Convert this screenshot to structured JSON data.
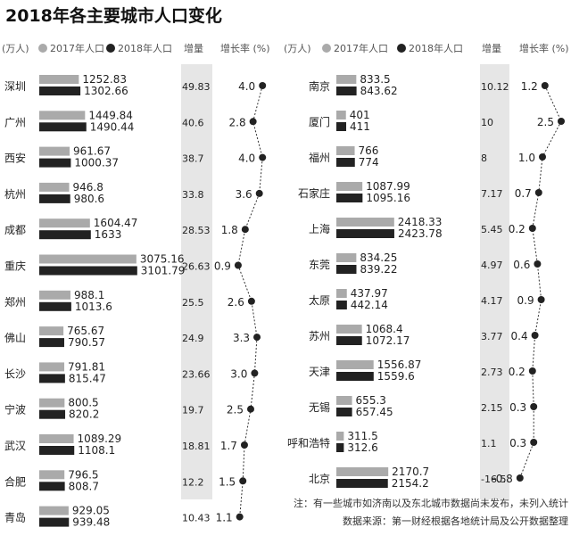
{
  "title": "2018年各主要城市人口变化",
  "header": {
    "unit": "(万人)",
    "legend_2017": "2017年人口",
    "legend_2018": "2018年人口",
    "increase": "增量",
    "growth": "增长率 (%)"
  },
  "colors": {
    "y2017": "#aaaaaa",
    "y2018": "#222222",
    "band": "#e6e6e6"
  },
  "chart_data": [
    {
      "type": "bar",
      "unit": "万人",
      "series": [
        {
          "name": "2017年人口",
          "values": [
            1252.83,
            1449.84,
            961.67,
            946.8,
            1604.47,
            3075.16,
            988.1,
            765.67,
            791.81,
            800.5,
            1089.29,
            796.5,
            929.05
          ]
        },
        {
          "name": "2018年人口",
          "values": [
            1302.66,
            1490.44,
            1000.37,
            980.6,
            1633,
            3101.79,
            1013.6,
            790.57,
            815.47,
            820.2,
            1108.1,
            808.7,
            939.48
          ]
        }
      ],
      "categories": [
        "深圳",
        "广州",
        "西安",
        "杭州",
        "成都",
        "重庆",
        "郑州",
        "佛山",
        "长沙",
        "宁波",
        "武汉",
        "合肥",
        "青岛"
      ],
      "increase": [
        "49.83",
        "40.6",
        "38.7",
        "33.8",
        "28.53",
        "26.63",
        "25.5",
        "24.9",
        "23.66",
        "19.7",
        "18.81",
        "12.2",
        "10.43"
      ],
      "growth": [
        4.0,
        2.8,
        4.0,
        3.6,
        1.8,
        0.9,
        2.6,
        3.3,
        3.0,
        2.5,
        1.7,
        1.5,
        1.1
      ],
      "growth_labels": [
        "4.0",
        "2.8",
        "4.0",
        "3.6",
        "1.8",
        "0.9",
        "2.6",
        "3.3",
        "3.0",
        "2.5",
        "1.7",
        "1.5",
        "1.1"
      ]
    },
    {
      "type": "bar",
      "unit": "万人",
      "series": [
        {
          "name": "2017年人口",
          "values": [
            833.5,
            401,
            766,
            1087.99,
            2418.33,
            834.25,
            437.97,
            1068.4,
            1556.87,
            655.3,
            311.5,
            2170.7
          ]
        },
        {
          "name": "2018年人口",
          "values": [
            843.62,
            411,
            774,
            1095.16,
            2423.78,
            839.22,
            442.14,
            1072.17,
            1559.6,
            657.45,
            312.6,
            2154.2
          ]
        }
      ],
      "categories": [
        "南京",
        "厦门",
        "福州",
        "石家庄",
        "上海",
        "东莞",
        "太原",
        "苏州",
        "天津",
        "无锡",
        "呼和浩特",
        "北京"
      ],
      "increase": [
        "10.12",
        "10",
        "8",
        "7.17",
        "5.45",
        "4.97",
        "4.17",
        "3.77",
        "2.73",
        "2.15",
        "1.1",
        "-16.5"
      ],
      "growth": [
        1.2,
        2.5,
        1.0,
        0.7,
        0.2,
        0.6,
        0.9,
        0.4,
        0.2,
        0.3,
        0.3,
        -0.8
      ],
      "growth_labels": [
        "1.2",
        "2.5",
        "1.0",
        "0.7",
        "0.2",
        "0.6",
        "0.9",
        "0.4",
        "0.2",
        "0.3",
        "0.3",
        "-0.8"
      ]
    }
  ],
  "footnote": {
    "note": "注：有一些城市如济南以及东北城市数据尚未发布，未列入统计",
    "source": "数据来源：第一财经根据各地统计局及公开数据整理"
  }
}
